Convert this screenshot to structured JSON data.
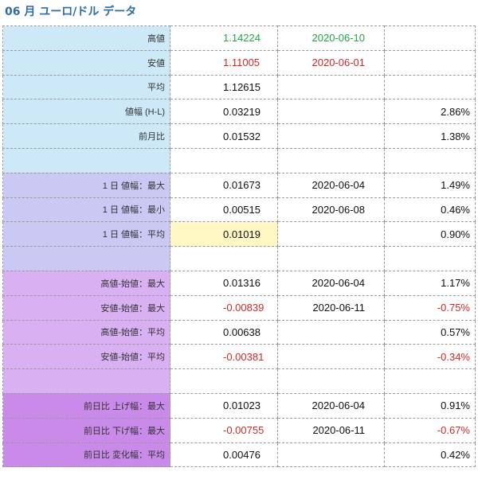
{
  "title": "06 月 ユーロ/ドル データ",
  "rows": [
    {
      "label": "高値",
      "value": "1.14224",
      "date": "2020-06-10",
      "pct": ""
    },
    {
      "label": "安値",
      "value": "1.11005",
      "date": "2020-06-01",
      "pct": ""
    },
    {
      "label": "平均",
      "value": "1.12615",
      "date": "",
      "pct": ""
    },
    {
      "label": "値幅 (H-L)",
      "value": "0.03219",
      "date": "",
      "pct": "2.86%"
    },
    {
      "label": "前月比",
      "value": "0.01532",
      "date": "",
      "pct": "1.38%"
    },
    {
      "label": "",
      "value": "",
      "date": "",
      "pct": ""
    },
    {
      "label": "1 日 値幅：最大",
      "value": "0.01673",
      "date": "2020-06-04",
      "pct": "1.49%"
    },
    {
      "label": "1 日 値幅：最小",
      "value": "0.00515",
      "date": "2020-06-08",
      "pct": "0.46%"
    },
    {
      "label": "1 日 値幅：平均",
      "value": "0.01019",
      "date": "",
      "pct": "0.90%"
    },
    {
      "label": "",
      "value": "",
      "date": "",
      "pct": ""
    },
    {
      "label": "高値-始値：最大",
      "value": "0.01316",
      "date": "2020-06-04",
      "pct": "1.17%"
    },
    {
      "label": "安値-始値：最大",
      "value": "-0.00839",
      "date": "2020-06-11",
      "pct": "-0.75%"
    },
    {
      "label": "高値-始値：平均",
      "value": "0.00638",
      "date": "",
      "pct": "0.57%"
    },
    {
      "label": "安値-始値：平均",
      "value": "-0.00381",
      "date": "",
      "pct": "-0.34%"
    },
    {
      "label": "",
      "value": "",
      "date": "",
      "pct": ""
    },
    {
      "label": "前日比 上げ幅：最大",
      "value": "0.01023",
      "date": "2020-06-04",
      "pct": "0.91%"
    },
    {
      "label": "前日比 下げ幅：最大",
      "value": "-0.00755",
      "date": "2020-06-11",
      "pct": "-0.67%"
    },
    {
      "label": "前日比 変化幅：平均",
      "value": "0.00476",
      "date": "",
      "pct": "0.42%"
    }
  ],
  "colors": {
    "group1": "#cde9f8",
    "group2": "#c9c9f3",
    "group3": "#d9b0f2",
    "group4": "#c98ae9",
    "highlight": "#fff8c4",
    "positive_high": "#21a44a",
    "negative": "#d02a2a"
  }
}
